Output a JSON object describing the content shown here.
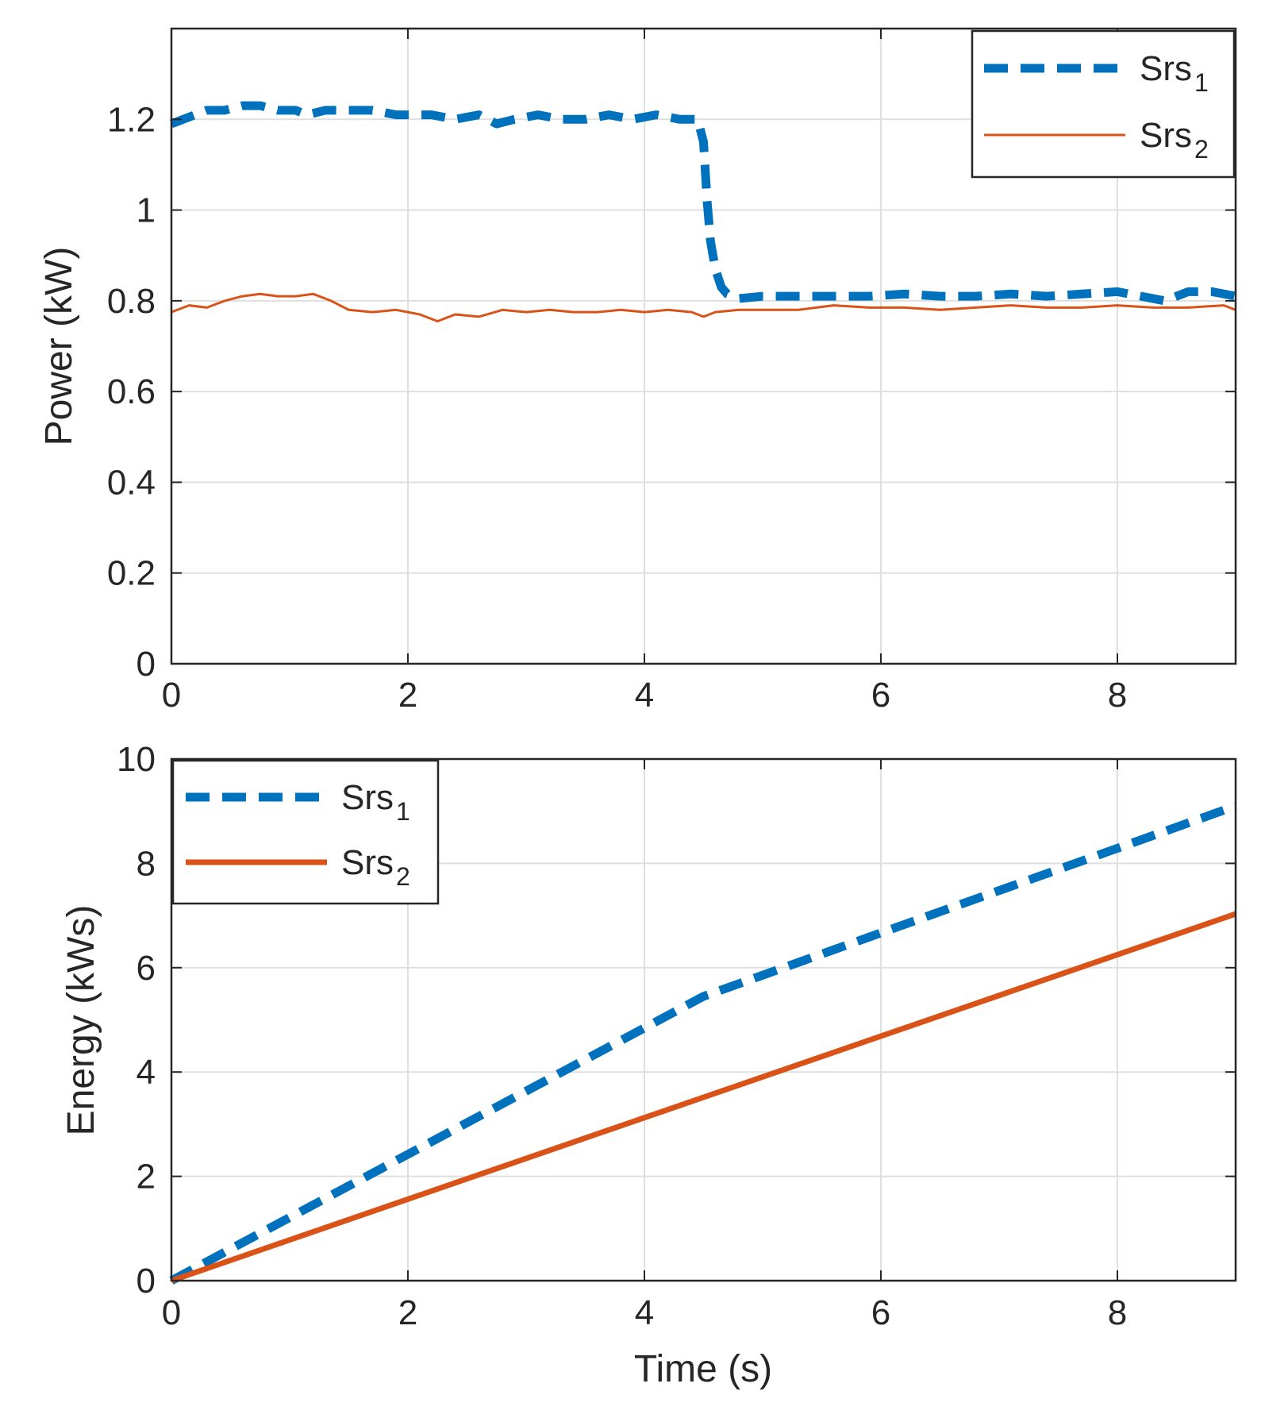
{
  "colors": {
    "series1": "#0072BD",
    "series2": "#D95319",
    "axis": "#262626",
    "grid": "#dfdfdf"
  },
  "chart_data": [
    {
      "type": "line",
      "id": "power",
      "title": "",
      "xlabel": "",
      "ylabel": "Power (kW)",
      "xlim": [
        0,
        9
      ],
      "ylim": [
        0,
        1.4
      ],
      "xticks": [
        0,
        2,
        4,
        6,
        8
      ],
      "yticks": [
        0,
        0.2,
        0.4,
        0.6,
        0.8,
        1,
        1.2
      ],
      "xtick_labels": [
        "0",
        "2",
        "4",
        "6",
        "8"
      ],
      "ytick_labels": [
        "0",
        "0.2",
        "0.4",
        "0.6",
        "0.8",
        "1",
        "1.2"
      ],
      "grid": true,
      "legend_position": "top-right",
      "series": [
        {
          "name": "Srs",
          "sub": "1",
          "style": "dashed",
          "x": [
            0,
            0.1,
            0.2,
            0.3,
            0.45,
            0.6,
            0.75,
            0.9,
            1.05,
            1.15,
            1.3,
            1.5,
            1.7,
            1.9,
            2.0,
            2.2,
            2.4,
            2.6,
            2.75,
            2.9,
            3.1,
            3.3,
            3.5,
            3.7,
            3.9,
            4.1,
            4.3,
            4.45,
            4.5,
            4.53,
            4.56,
            4.6,
            4.65,
            4.7,
            4.8,
            5.0,
            5.3,
            5.6,
            5.9,
            6.2,
            6.5,
            6.8,
            7.1,
            7.4,
            7.7,
            8.0,
            8.2,
            8.4,
            8.6,
            8.8,
            9.0
          ],
          "y": [
            1.19,
            1.2,
            1.21,
            1.22,
            1.22,
            1.23,
            1.23,
            1.22,
            1.22,
            1.21,
            1.22,
            1.22,
            1.22,
            1.21,
            1.21,
            1.21,
            1.2,
            1.21,
            1.19,
            1.2,
            1.21,
            1.2,
            1.2,
            1.21,
            1.2,
            1.21,
            1.2,
            1.2,
            1.15,
            1.02,
            0.93,
            0.87,
            0.83,
            0.815,
            0.805,
            0.81,
            0.81,
            0.81,
            0.81,
            0.815,
            0.81,
            0.81,
            0.815,
            0.81,
            0.815,
            0.82,
            0.81,
            0.8,
            0.82,
            0.82,
            0.81
          ]
        },
        {
          "name": "Srs",
          "sub": "2",
          "style": "solid-thin",
          "x": [
            0,
            0.15,
            0.3,
            0.45,
            0.6,
            0.75,
            0.9,
            1.05,
            1.2,
            1.35,
            1.5,
            1.7,
            1.9,
            2.1,
            2.25,
            2.4,
            2.6,
            2.8,
            3.0,
            3.2,
            3.4,
            3.6,
            3.8,
            4.0,
            4.2,
            4.4,
            4.5,
            4.6,
            4.8,
            5.0,
            5.3,
            5.6,
            5.9,
            6.2,
            6.5,
            6.8,
            7.1,
            7.4,
            7.7,
            8.0,
            8.3,
            8.6,
            8.9,
            9.0
          ],
          "y": [
            0.775,
            0.79,
            0.785,
            0.8,
            0.81,
            0.815,
            0.81,
            0.81,
            0.815,
            0.8,
            0.78,
            0.775,
            0.78,
            0.77,
            0.755,
            0.77,
            0.765,
            0.78,
            0.775,
            0.78,
            0.775,
            0.775,
            0.78,
            0.775,
            0.78,
            0.775,
            0.765,
            0.775,
            0.78,
            0.78,
            0.78,
            0.79,
            0.785,
            0.785,
            0.78,
            0.785,
            0.79,
            0.785,
            0.785,
            0.79,
            0.785,
            0.785,
            0.79,
            0.78
          ]
        }
      ]
    },
    {
      "type": "line",
      "id": "energy",
      "title": "",
      "xlabel": "Time (s)",
      "ylabel": "Energy (kWs)",
      "xlim": [
        0,
        9
      ],
      "ylim": [
        0,
        10
      ],
      "xticks": [
        0,
        2,
        4,
        6,
        8
      ],
      "yticks": [
        0,
        2,
        4,
        6,
        8,
        10
      ],
      "xtick_labels": [
        "0",
        "2",
        "4",
        "6",
        "8"
      ],
      "ytick_labels": [
        "0",
        "2",
        "4",
        "6",
        "8",
        "10"
      ],
      "grid": true,
      "legend_position": "top-left",
      "series": [
        {
          "name": "Srs",
          "sub": "1",
          "style": "dashed",
          "x": [
            0,
            4.5,
            9.0
          ],
          "y": [
            0,
            5.45,
            9.1
          ]
        },
        {
          "name": "Srs",
          "sub": "2",
          "style": "solid-thick",
          "x": [
            0,
            9.0
          ],
          "y": [
            0,
            7.03
          ]
        }
      ]
    }
  ]
}
